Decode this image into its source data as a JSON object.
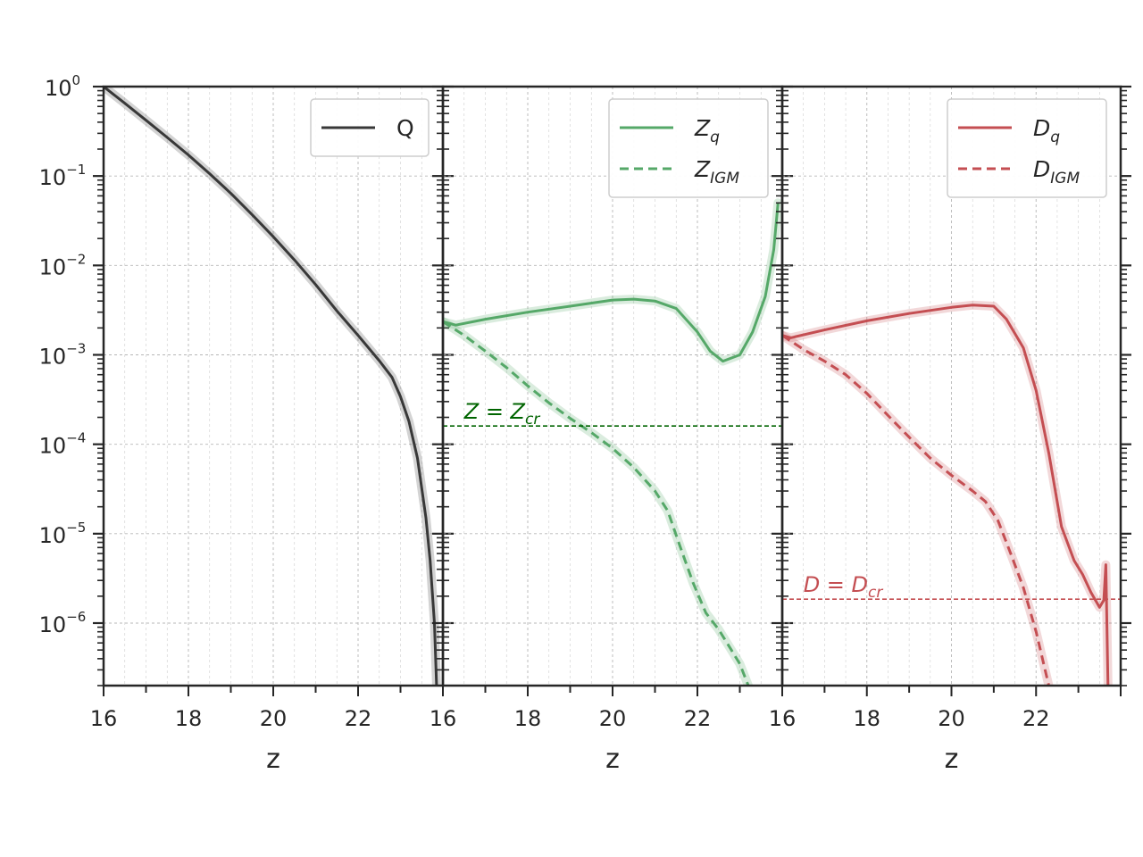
{
  "chart_data": [
    {
      "type": "line",
      "panel": "left",
      "xlabel": "z",
      "xlim": [
        16,
        24
      ],
      "xticks": [
        "16",
        "18",
        "20",
        "22"
      ],
      "yscale": "log",
      "ylim": [
        2e-07,
        1
      ],
      "yticks": [
        {
          "base": "10",
          "exp": "0"
        },
        {
          "base": "10",
          "exp": "−1"
        },
        {
          "base": "10",
          "exp": "−2"
        },
        {
          "base": "10",
          "exp": "−3"
        },
        {
          "base": "10",
          "exp": "−4"
        },
        {
          "base": "10",
          "exp": "−5"
        },
        {
          "base": "10",
          "exp": "−6"
        }
      ],
      "grid": true,
      "legend_position": "top-right",
      "series": [
        {
          "name": "Q",
          "color": "#383838",
          "style": "solid",
          "band": true,
          "points": [
            [
              16.0,
              1.0
            ],
            [
              16.5,
              0.65
            ],
            [
              17.0,
              0.42
            ],
            [
              17.5,
              0.27
            ],
            [
              18.0,
              0.172
            ],
            [
              18.5,
              0.106
            ],
            [
              19.0,
              0.064
            ],
            [
              19.5,
              0.037
            ],
            [
              20.0,
              0.021
            ],
            [
              20.5,
              0.0115
            ],
            [
              21.0,
              0.0061
            ],
            [
              21.5,
              0.0031
            ],
            [
              22.0,
              0.00165
            ],
            [
              22.5,
              0.00086
            ],
            [
              22.8,
              0.00056
            ],
            [
              23.0,
              0.00034
            ],
            [
              23.2,
              0.00018
            ],
            [
              23.4,
              7e-05
            ],
            [
              23.6,
              1.5e-05
            ],
            [
              23.7,
              5e-06
            ],
            [
              23.8,
              1e-06
            ],
            [
              23.85,
              2e-07
            ]
          ]
        }
      ]
    },
    {
      "type": "line",
      "panel": "middle",
      "xlabel": "z",
      "xlim": [
        16,
        24
      ],
      "xticks": [
        "16",
        "18",
        "20",
        "22"
      ],
      "yscale": "log",
      "ylim": [
        2e-07,
        1
      ],
      "grid": true,
      "legend_position": "top-right",
      "series": [
        {
          "name": "Zq",
          "label_main": "Z",
          "label_sub": "q",
          "color": "#55a868",
          "style": "solid",
          "band": true,
          "points": [
            [
              16.0,
              0.00235
            ],
            [
              16.3,
              0.00215
            ],
            [
              17.0,
              0.0025
            ],
            [
              18.0,
              0.003
            ],
            [
              19.0,
              0.0035
            ],
            [
              20.0,
              0.0041
            ],
            [
              20.5,
              0.0042
            ],
            [
              21.0,
              0.004
            ],
            [
              21.5,
              0.0033
            ],
            [
              22.0,
              0.0018
            ],
            [
              22.3,
              0.0011
            ],
            [
              22.6,
              0.00085
            ],
            [
              23.0,
              0.001
            ],
            [
              23.3,
              0.0018
            ],
            [
              23.6,
              0.0045
            ],
            [
              23.8,
              0.015
            ],
            [
              23.9,
              0.05
            ]
          ]
        },
        {
          "name": "ZIGM",
          "label_main": "Z",
          "label_sub": "IGM",
          "color": "#55a868",
          "style": "dashed",
          "band": true,
          "points": [
            [
              16.0,
              0.00235
            ],
            [
              16.5,
              0.00165
            ],
            [
              17.0,
              0.0011
            ],
            [
              17.5,
              0.00072
            ],
            [
              18.0,
              0.00045
            ],
            [
              18.5,
              0.00029
            ],
            [
              19.0,
              0.000195
            ],
            [
              19.5,
              0.000135
            ],
            [
              20.0,
              9e-05
            ],
            [
              20.5,
              5.5e-05
            ],
            [
              21.0,
              3e-05
            ],
            [
              21.3,
              1.8e-05
            ],
            [
              21.6,
              7e-06
            ],
            [
              21.9,
              2.8e-06
            ],
            [
              22.2,
              1.3e-06
            ],
            [
              22.5,
              8.5e-07
            ],
            [
              22.8,
              5e-07
            ],
            [
              23.0,
              3.5e-07
            ],
            [
              23.2,
              2e-07
            ]
          ]
        },
        {
          "name": "Z = Zcr",
          "label_main": "Z = Z",
          "label_sub": "cr",
          "color": "#006400",
          "style": "dotted-thin",
          "value": 0.00016
        }
      ]
    },
    {
      "type": "line",
      "panel": "right",
      "xlabel": "z",
      "xlim": [
        16,
        24
      ],
      "xticks": [
        "16",
        "18",
        "20",
        "22"
      ],
      "yscale": "log",
      "ylim": [
        2e-07,
        1
      ],
      "grid": true,
      "legend_position": "top-right",
      "series": [
        {
          "name": "Dq",
          "label_main": "D",
          "label_sub": "q",
          "color": "#c44e52",
          "style": "solid",
          "band": true,
          "points": [
            [
              16.0,
              0.00165
            ],
            [
              16.2,
              0.00155
            ],
            [
              17.0,
              0.0019
            ],
            [
              18.0,
              0.0024
            ],
            [
              19.0,
              0.0029
            ],
            [
              20.0,
              0.0034
            ],
            [
              20.5,
              0.0036
            ],
            [
              21.0,
              0.0035
            ],
            [
              21.3,
              0.0025
            ],
            [
              21.7,
              0.0012
            ],
            [
              22.0,
              0.0004
            ],
            [
              22.3,
              8e-05
            ],
            [
              22.6,
              1.2e-05
            ],
            [
              22.9,
              5e-06
            ],
            [
              23.1,
              3.5e-06
            ],
            [
              23.3,
              2.2e-06
            ],
            [
              23.5,
              1.5e-06
            ],
            [
              23.6,
              1.8e-06
            ],
            [
              23.65,
              4.5e-06
            ],
            [
              23.7,
              2e-07
            ]
          ]
        },
        {
          "name": "DIGM",
          "label_main": "D",
          "label_sub": "IGM",
          "color": "#c44e52",
          "style": "dashed",
          "band": true,
          "points": [
            [
              16.0,
              0.00165
            ],
            [
              16.5,
              0.00115
            ],
            [
              17.0,
              0.00085
            ],
            [
              17.5,
              0.0006
            ],
            [
              18.0,
              0.00037
            ],
            [
              18.5,
              0.00021
            ],
            [
              19.0,
              0.00012
            ],
            [
              19.5,
              7e-05
            ],
            [
              20.0,
              4.5e-05
            ],
            [
              20.5,
              3e-05
            ],
            [
              20.8,
              2.3e-05
            ],
            [
              21.1,
              1.4e-05
            ],
            [
              21.4,
              6e-06
            ],
            [
              21.7,
              2.5e-06
            ],
            [
              22.0,
              8e-07
            ],
            [
              22.3,
              2e-07
            ]
          ]
        },
        {
          "name": "D = Dcr",
          "label_main": "D = D",
          "label_sub": "cr",
          "color": "#c44e52",
          "style": "dotted-thin",
          "value": 1.85e-06
        }
      ]
    }
  ]
}
